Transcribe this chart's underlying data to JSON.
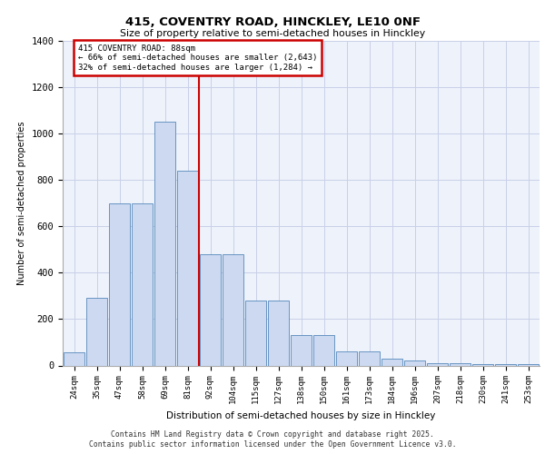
{
  "title1": "415, COVENTRY ROAD, HINCKLEY, LE10 0NF",
  "title2": "Size of property relative to semi-detached houses in Hinckley",
  "xlabel": "Distribution of semi-detached houses by size in Hinckley",
  "ylabel": "Number of semi-detached properties",
  "categories": [
    "24sqm",
    "35sqm",
    "47sqm",
    "58sqm",
    "69sqm",
    "81sqm",
    "92sqm",
    "104sqm",
    "115sqm",
    "127sqm",
    "138sqm",
    "150sqm",
    "161sqm",
    "173sqm",
    "184sqm",
    "196sqm",
    "207sqm",
    "218sqm",
    "230sqm",
    "241sqm",
    "253sqm"
  ],
  "values": [
    55,
    290,
    700,
    700,
    1050,
    840,
    480,
    480,
    280,
    280,
    130,
    130,
    60,
    60,
    30,
    20,
    10,
    10,
    5,
    5,
    5
  ],
  "bar_color": "#ccd9f0",
  "bar_edge_color": "#5588bb",
  "vline_x": 5.5,
  "vline_color": "#cc0000",
  "annotation_title": "415 COVENTRY ROAD: 88sqm",
  "annotation_line1": "← 66% of semi-detached houses are smaller (2,643)",
  "annotation_line2": "32% of semi-detached houses are larger (1,284) →",
  "annotation_box_color": "#cc0000",
  "annotation_fill": "#ffffff",
  "footer1": "Contains HM Land Registry data © Crown copyright and database right 2025.",
  "footer2": "Contains public sector information licensed under the Open Government Licence v3.0.",
  "ylim": [
    0,
    1400
  ],
  "yticks": [
    0,
    200,
    400,
    600,
    800,
    1000,
    1200,
    1400
  ],
  "bg_color": "#eef2fb",
  "grid_color": "#c8d0e8"
}
